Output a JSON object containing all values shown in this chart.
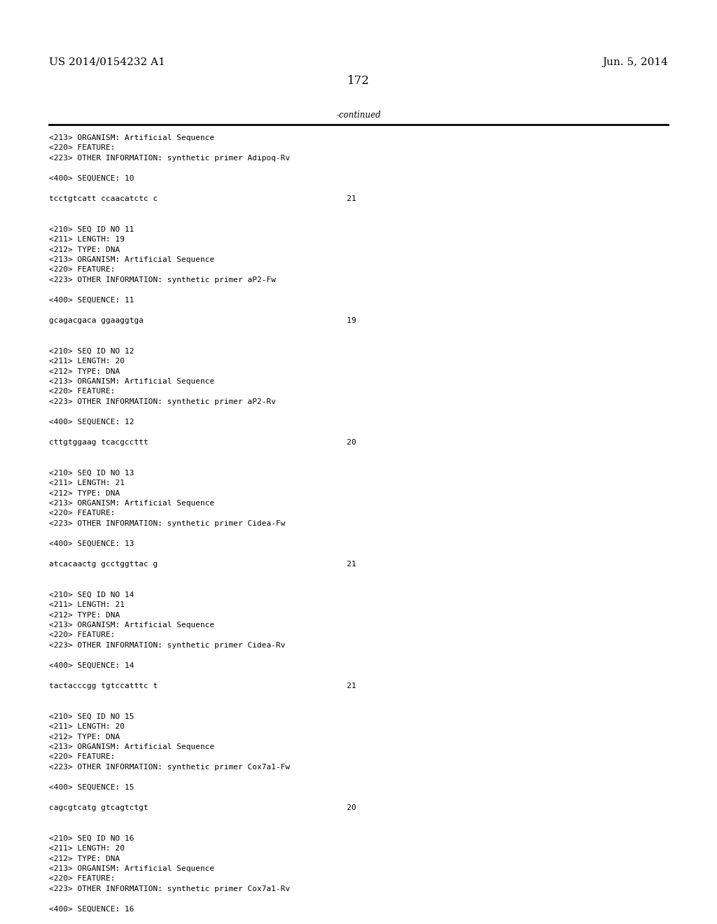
{
  "background_color": "#ffffff",
  "header_left": "US 2014/0154232 A1",
  "header_right": "Jun. 5, 2014",
  "page_number": "172",
  "continued_text": "-continued",
  "font_size_header": 11,
  "font_size_page": 12,
  "font_size_body": 8.5,
  "font_size_mono": 8.0,
  "content_lines": [
    "<213> ORGANISM: Artificial Sequence",
    "<220> FEATURE:",
    "<223> OTHER INFORMATION: synthetic primer Adipoq-Rv",
    "",
    "<400> SEQUENCE: 10",
    "",
    "tcctgtcatt ccaacatctc c                                        21",
    "",
    "",
    "<210> SEQ ID NO 11",
    "<211> LENGTH: 19",
    "<212> TYPE: DNA",
    "<213> ORGANISM: Artificial Sequence",
    "<220> FEATURE:",
    "<223> OTHER INFORMATION: synthetic primer aP2-Fw",
    "",
    "<400> SEQUENCE: 11",
    "",
    "gcagacgaca ggaaggtga                                           19",
    "",
    "",
    "<210> SEQ ID NO 12",
    "<211> LENGTH: 20",
    "<212> TYPE: DNA",
    "<213> ORGANISM: Artificial Sequence",
    "<220> FEATURE:",
    "<223> OTHER INFORMATION: synthetic primer aP2-Rv",
    "",
    "<400> SEQUENCE: 12",
    "",
    "cttgtggaag tcacgccttt                                          20",
    "",
    "",
    "<210> SEQ ID NO 13",
    "<211> LENGTH: 21",
    "<212> TYPE: DNA",
    "<213> ORGANISM: Artificial Sequence",
    "<220> FEATURE:",
    "<223> OTHER INFORMATION: synthetic primer Cidea-Fw",
    "",
    "<400> SEQUENCE: 13",
    "",
    "atcacaactg gcctggttac g                                        21",
    "",
    "",
    "<210> SEQ ID NO 14",
    "<211> LENGTH: 21",
    "<212> TYPE: DNA",
    "<213> ORGANISM: Artificial Sequence",
    "<220> FEATURE:",
    "<223> OTHER INFORMATION: synthetic primer Cidea-Rv",
    "",
    "<400> SEQUENCE: 14",
    "",
    "tactacccgg tgtccatttc t                                        21",
    "",
    "",
    "<210> SEQ ID NO 15",
    "<211> LENGTH: 20",
    "<212> TYPE: DNA",
    "<213> ORGANISM: Artificial Sequence",
    "<220> FEATURE:",
    "<223> OTHER INFORMATION: synthetic primer Cox7a1-Fw",
    "",
    "<400> SEQUENCE: 15",
    "",
    "cagcgtcatg gtcagtctgt                                          20",
    "",
    "",
    "<210> SEQ ID NO 16",
    "<211> LENGTH: 20",
    "<212> TYPE: DNA",
    "<213> ORGANISM: Artificial Sequence",
    "<220> FEATURE:",
    "<223> OTHER INFORMATION: synthetic primer Cox7a1-Rv",
    "",
    "<400> SEQUENCE: 16"
  ]
}
